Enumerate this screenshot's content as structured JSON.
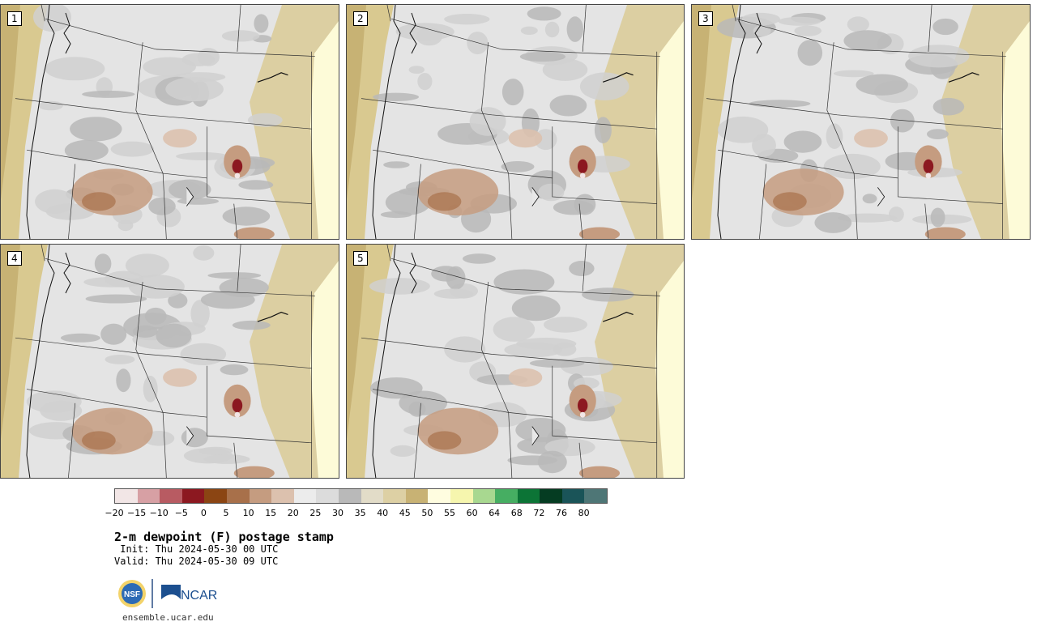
{
  "panels": [
    {
      "label": "1"
    },
    {
      "label": "2"
    },
    {
      "label": "3"
    },
    {
      "label": "4"
    },
    {
      "label": "5"
    }
  ],
  "colorbar": {
    "colors": [
      "#f2e6e6",
      "#d7a0a4",
      "#b85b62",
      "#8c1820",
      "#8b4513",
      "#a8704a",
      "#c59c80",
      "#dcc1ae",
      "#ececec",
      "#dcdcdc",
      "#b9b9b9",
      "#e2dcc8",
      "#ddd0a4",
      "#c8b274",
      "#fffde0",
      "#f6f6ae",
      "#a8d890",
      "#46ae62",
      "#0c7436",
      "#053c22",
      "#1a5458",
      "#4e7676"
    ],
    "ticks": [
      "−20",
      "−15",
      "−10",
      "−5",
      "0",
      "5",
      "10",
      "15",
      "20",
      "25",
      "30",
      "35",
      "40",
      "45",
      "50",
      "55",
      "60",
      "64",
      "68",
      "72",
      "76",
      "80"
    ]
  },
  "title": "2-m dewpoint (F) postage stamp",
  "init_line": " Init: Thu 2024-05-30 00 UTC",
  "valid_line": "Valid: Thu 2024-05-30 09 UTC",
  "logos": {
    "nsf": "NSF",
    "ncar": "NCAR"
  },
  "site": "ensemble.ucar.edu"
}
